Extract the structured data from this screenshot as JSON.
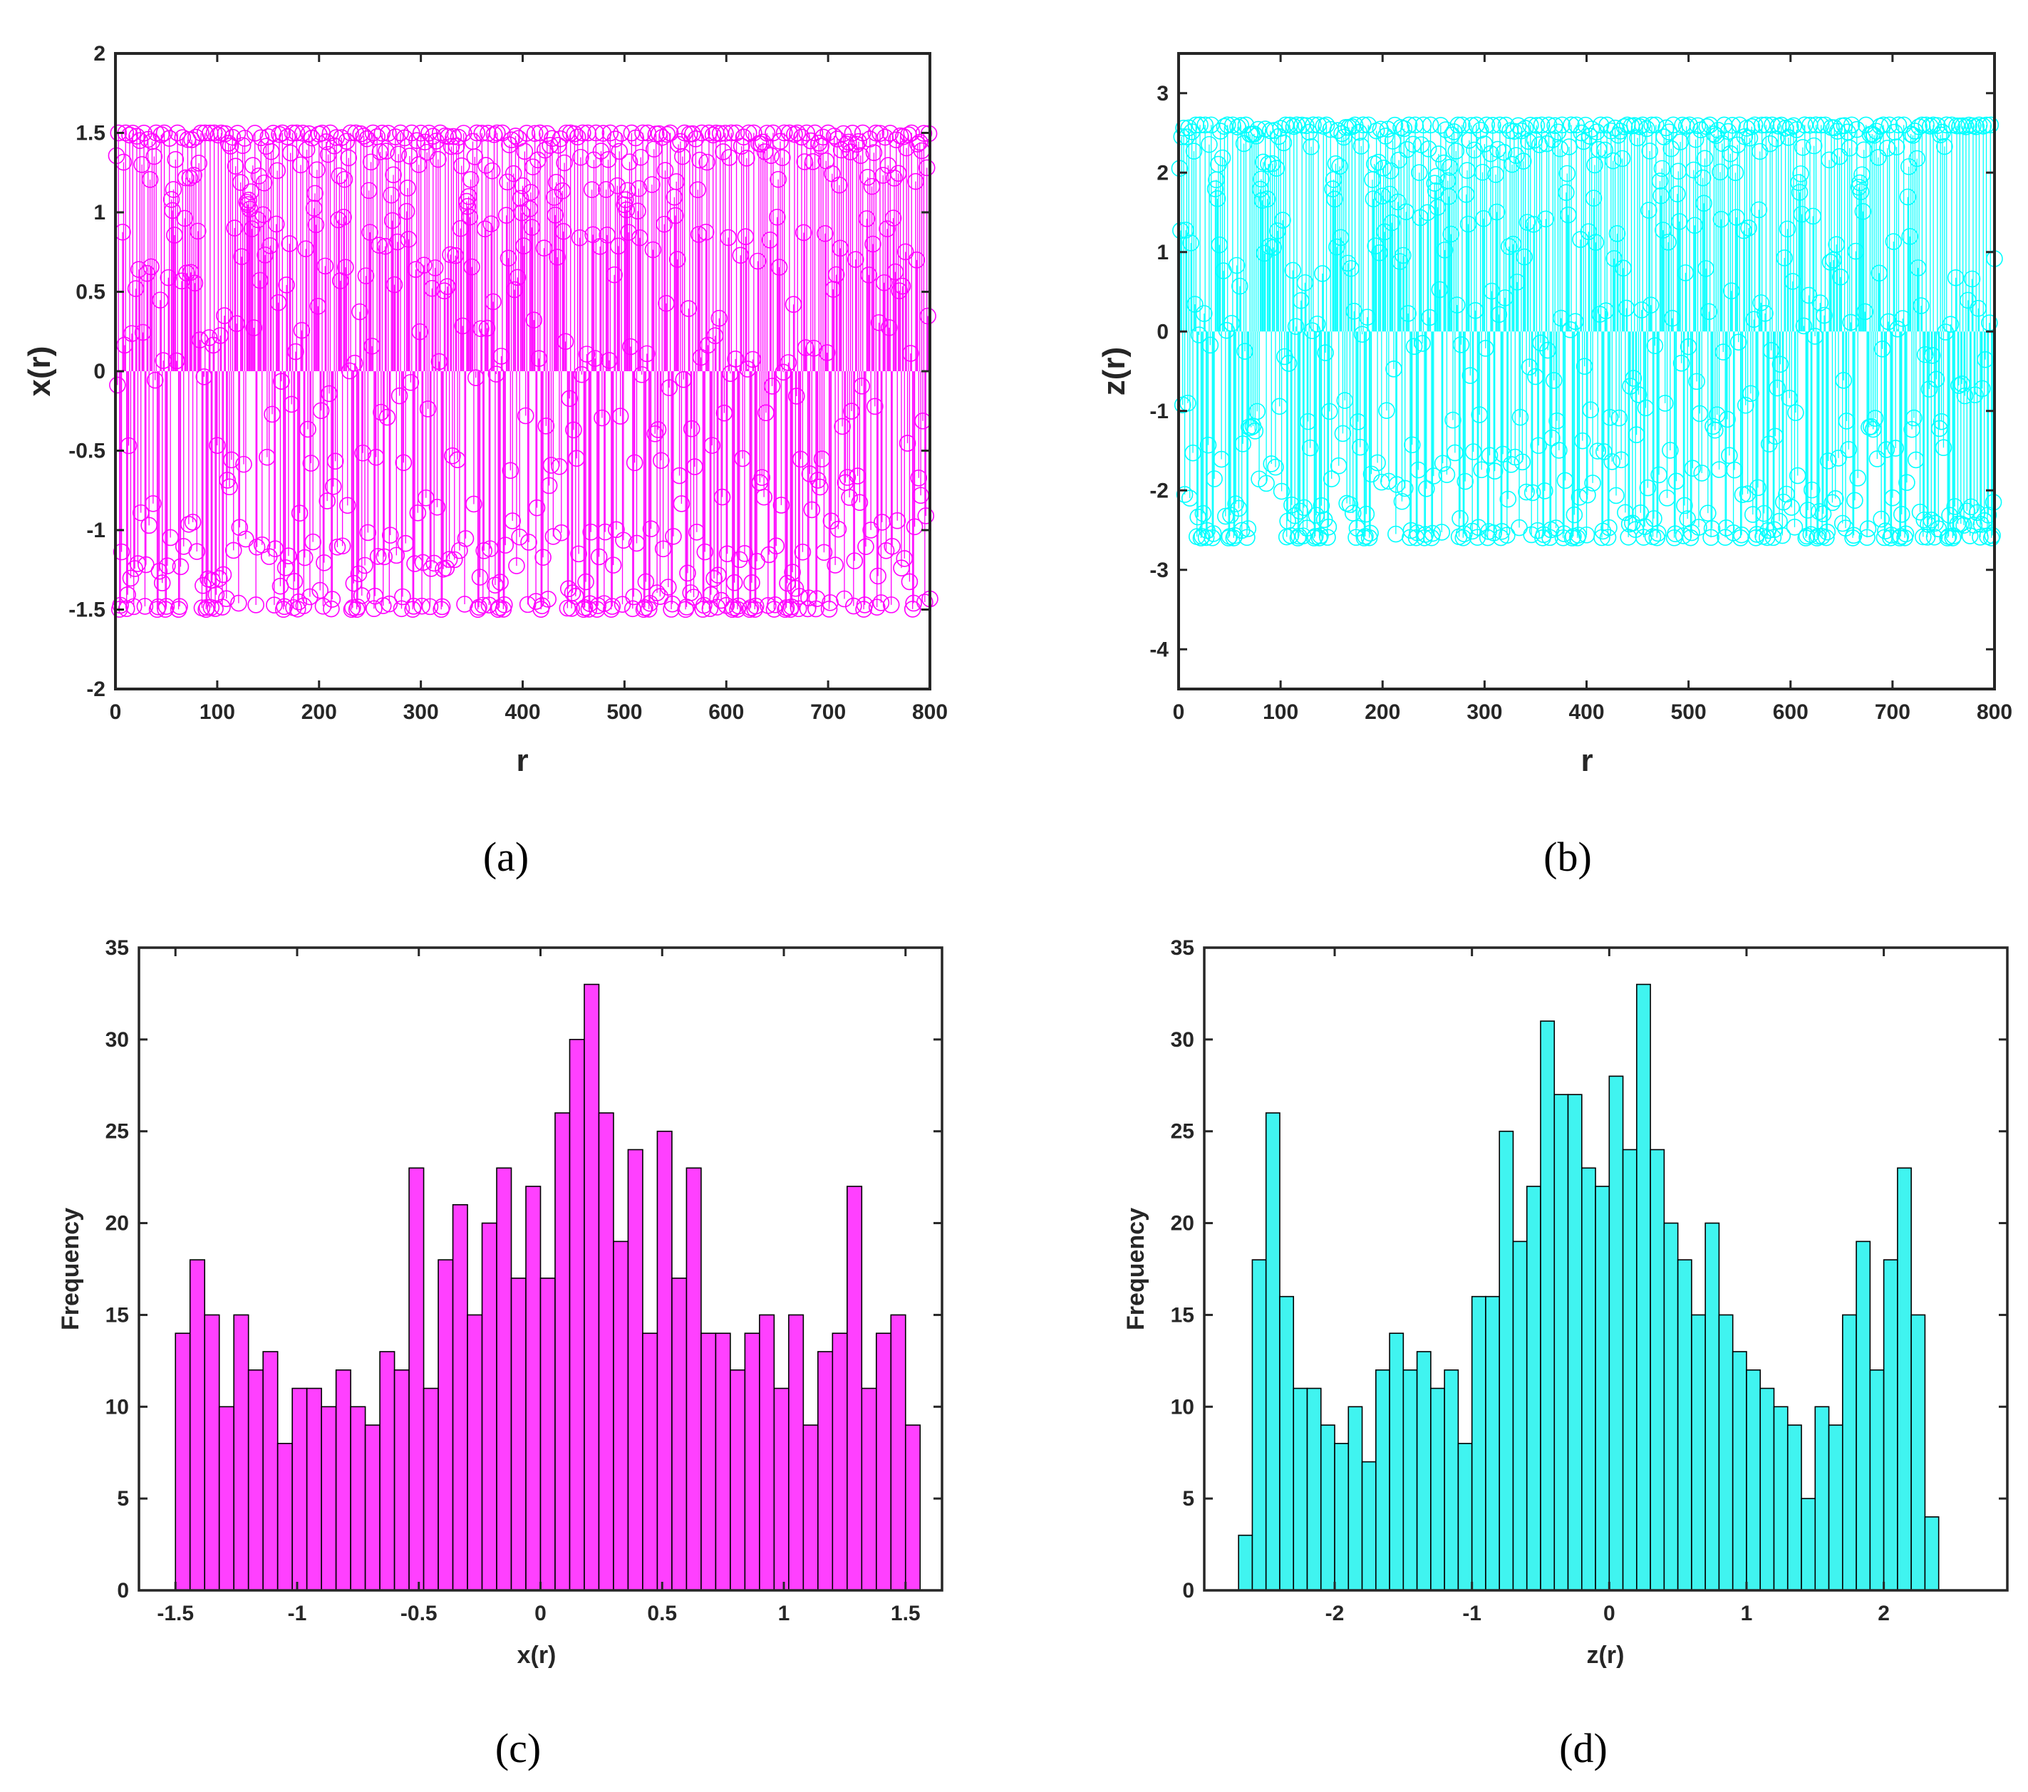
{
  "colors": {
    "magenta": "#ff00ff",
    "cyan": "#00ffff",
    "axis": "#262626",
    "hist_edge": "#000000"
  },
  "panels": [
    {
      "caption": "(a)"
    },
    {
      "caption": "(b)"
    },
    {
      "caption": "(c)"
    },
    {
      "caption": "(d)"
    }
  ],
  "chart_data": [
    {
      "type": "scatter",
      "style": "stem",
      "title": "",
      "xlabel": "r",
      "ylabel": "x(r)",
      "xlim": [
        0,
        800
      ],
      "ylim": [
        -2,
        2
      ],
      "xticks": [
        "0",
        "100",
        "200",
        "300",
        "400",
        "500",
        "600",
        "700",
        "800"
      ],
      "yticks": [
        "2",
        "1.5",
        "1",
        "0.5",
        "0",
        "-0.5",
        "-1",
        "-1.5",
        "-2"
      ],
      "n_points": 800,
      "amplitude": 1.5,
      "color": "#ff00ff",
      "marker": "circle",
      "note": "Chaotic sequence of 800 samples, values spread between about -1.5 and 1.5"
    },
    {
      "type": "scatter",
      "style": "stem",
      "title": "",
      "xlabel": "r",
      "ylabel": "z(r)",
      "xlim": [
        0,
        800
      ],
      "ylim": [
        -4.5,
        3.5
      ],
      "xticks": [
        "0",
        "100",
        "200",
        "300",
        "400",
        "500",
        "600",
        "700",
        "800"
      ],
      "yticks": [
        "3",
        "2",
        "1",
        "0",
        "-1",
        "-2",
        "-3",
        "-4"
      ],
      "n_points": 800,
      "amplitude": 2.6,
      "color": "#00ffff",
      "marker": "circle",
      "note": "Chaotic sequence of 800 samples, values spread between about -2.6 and 2.6"
    },
    {
      "type": "bar",
      "style": "histogram",
      "title": "",
      "xlabel": "x(r)",
      "ylabel": "Frequency",
      "xlim": [
        -1.65,
        1.65
      ],
      "ylim": [
        0,
        35
      ],
      "xticks": [
        "-1.5",
        "-1",
        "-0.5",
        "0",
        "0.5",
        "1",
        "1.5"
      ],
      "yticks": [
        "35",
        "30",
        "25",
        "20",
        "15",
        "10",
        "5",
        "0"
      ],
      "bin_start": -1.5,
      "bin_width": 0.06,
      "values": [
        14,
        18,
        15,
        10,
        15,
        12,
        13,
        8,
        11,
        11,
        10,
        12,
        10,
        9,
        13,
        12,
        23,
        11,
        18,
        21,
        15,
        20,
        23,
        17,
        22,
        17,
        26,
        30,
        33,
        26,
        19,
        24,
        14,
        25,
        17,
        23,
        14,
        14,
        12,
        14,
        15,
        11,
        15,
        9,
        13,
        14,
        22,
        11,
        14,
        15,
        9
      ],
      "color": "#ff40ff"
    },
    {
      "type": "bar",
      "style": "histogram",
      "title": "",
      "xlabel": "z(r)",
      "ylabel": "Frequency",
      "xlim": [
        -2.95,
        2.9
      ],
      "ylim": [
        0,
        35
      ],
      "xticks": [
        "-2",
        "-1",
        "0",
        "1",
        "2"
      ],
      "yticks": [
        "35",
        "30",
        "25",
        "20",
        "15",
        "10",
        "5",
        "0"
      ],
      "bin_start": -2.7,
      "bin_width": 0.1,
      "values": [
        3,
        18,
        26,
        16,
        11,
        11,
        9,
        8,
        10,
        7,
        12,
        14,
        12,
        13,
        11,
        12,
        8,
        16,
        16,
        25,
        19,
        22,
        31,
        27,
        27,
        23,
        22,
        28,
        24,
        33,
        24,
        20,
        18,
        15,
        20,
        15,
        13,
        12,
        11,
        10,
        9,
        5,
        10,
        9,
        15,
        19,
        12,
        18,
        23,
        15,
        4
      ],
      "color": "#40f4f0"
    }
  ]
}
